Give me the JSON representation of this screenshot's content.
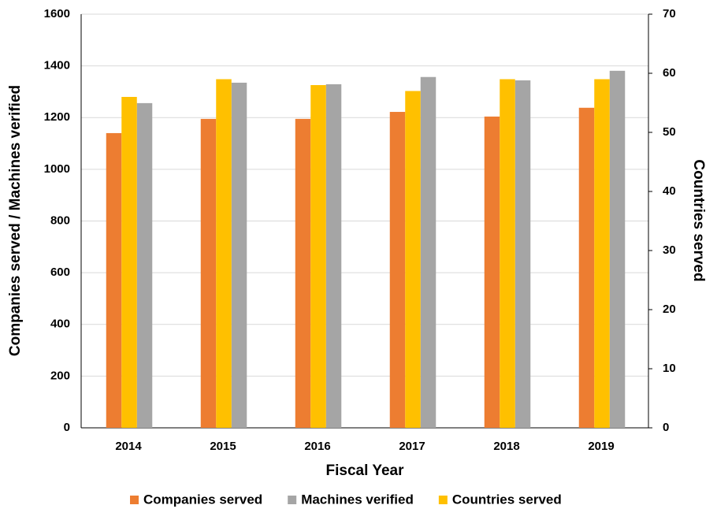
{
  "chart_data": {
    "type": "bar",
    "x_label": "Fiscal Year",
    "y_label": "Companies served / Machines verified",
    "y2_label": "Countries served",
    "categories": [
      "2014",
      "2015",
      "2016",
      "2017",
      "2018",
      "2019"
    ],
    "series": [
      {
        "name": "Companies served",
        "color": "#ed7d31",
        "values": [
          1140,
          1195,
          1195,
          1222,
          1204,
          1238
        ]
      },
      {
        "name": "Machines verified",
        "color": "#a5a5a5",
        "values": [
          1256,
          1335,
          1329,
          1357,
          1344,
          1381
        ]
      },
      {
        "name": "Countries served",
        "color": "#ffc000",
        "axis": "y2",
        "values": [
          56,
          59,
          58,
          57,
          59,
          59
        ]
      }
    ],
    "ylim": [
      0,
      1600
    ],
    "yticks": [
      0,
      200,
      400,
      600,
      800,
      1000,
      1200,
      1400,
      1600
    ],
    "y2lim": [
      0,
      70
    ],
    "y2ticks": [
      0,
      10,
      20,
      30,
      40,
      50,
      60,
      70
    ],
    "grid": true,
    "legend": "bottom"
  }
}
